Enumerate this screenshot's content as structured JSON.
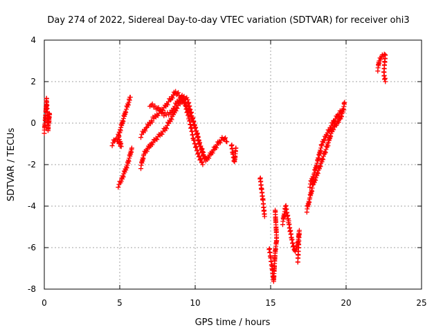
{
  "chart_data": {
    "type": "scatter",
    "title": "Day 274 of 2022, Sidereal Day-to-day VTEC variation (SDTVAR) for receiver ohi3",
    "xlabel": "GPS time / hours",
    "ylabel": "SDTVAR / TECUs",
    "xlim": [
      0,
      25
    ],
    "ylim": [
      -8,
      4
    ],
    "xticks": [
      "0",
      "5",
      "10",
      "15",
      "20",
      "25"
    ],
    "yticks": [
      "-8",
      "-6",
      "-4",
      "-2",
      "0",
      "2",
      "4"
    ],
    "grid": true,
    "marker": "+",
    "marker_color": "#ff0000",
    "series": [
      {
        "segments": [
          [
            [
              0.0,
              -0.4
            ],
            [
              0.05,
              0.0
            ],
            [
              0.1,
              0.5
            ],
            [
              0.15,
              1.2
            ],
            [
              0.2,
              0.3
            ],
            [
              0.25,
              -0.3
            ],
            [
              0.3,
              0.2
            ],
            [
              0.35,
              0.5
            ],
            [
              0.3,
              0.0
            ]
          ],
          [
            [
              4.5,
              -1.0
            ],
            [
              4.7,
              -0.8
            ],
            [
              4.9,
              -0.9
            ],
            [
              5.1,
              -1.1
            ],
            [
              4.9,
              -0.6
            ],
            [
              5.0,
              -0.4
            ],
            [
              5.2,
              0.1
            ],
            [
              5.4,
              0.6
            ],
            [
              5.6,
              1.0
            ],
            [
              5.7,
              1.25
            ]
          ],
          [
            [
              4.9,
              -3.0
            ],
            [
              5.1,
              -2.8
            ],
            [
              5.3,
              -2.4
            ],
            [
              5.5,
              -2.0
            ],
            [
              5.7,
              -1.5
            ],
            [
              5.8,
              -1.2
            ]
          ],
          [
            [
              6.4,
              -2.1
            ],
            [
              6.6,
              -1.5
            ],
            [
              6.9,
              -1.2
            ],
            [
              7.2,
              -0.9
            ],
            [
              7.6,
              -0.6
            ],
            [
              8.0,
              -0.3
            ],
            [
              8.4,
              0.2
            ],
            [
              8.8,
              0.8
            ],
            [
              9.2,
              1.1
            ],
            [
              9.6,
              0.6
            ],
            [
              10.0,
              -0.2
            ],
            [
              10.3,
              -1.0
            ],
            [
              10.6,
              -1.6
            ]
          ],
          [
            [
              6.4,
              -0.6
            ],
            [
              6.8,
              -0.2
            ],
            [
              7.2,
              0.2
            ],
            [
              7.6,
              0.5
            ],
            [
              8.0,
              0.8
            ],
            [
              8.4,
              1.2
            ],
            [
              8.7,
              1.5
            ],
            [
              9.0,
              1.3
            ],
            [
              9.3,
              1.0
            ],
            [
              9.6,
              0.2
            ],
            [
              9.9,
              -0.8
            ],
            [
              10.2,
              -1.5
            ],
            [
              10.5,
              -2.0
            ]
          ],
          [
            [
              7.0,
              0.9
            ],
            [
              7.5,
              0.7
            ],
            [
              8.0,
              0.4
            ],
            [
              8.4,
              0.5
            ],
            [
              8.8,
              1.0
            ],
            [
              9.2,
              1.3
            ],
            [
              9.5,
              1.1
            ],
            [
              9.8,
              0.3
            ],
            [
              10.1,
              -0.5
            ],
            [
              10.4,
              -1.3
            ],
            [
              10.7,
              -1.8
            ],
            [
              11.0,
              -1.5
            ],
            [
              11.3,
              -1.2
            ],
            [
              11.6,
              -0.9
            ],
            [
              11.9,
              -0.7
            ],
            [
              12.1,
              -0.9
            ]
          ],
          [
            [
              12.4,
              -1.0
            ],
            [
              12.5,
              -1.5
            ],
            [
              12.6,
              -1.9
            ],
            [
              12.7,
              -1.2
            ]
          ],
          [
            [
              14.3,
              -2.6
            ],
            [
              14.4,
              -3.2
            ],
            [
              14.5,
              -3.8
            ],
            [
              14.6,
              -4.5
            ]
          ],
          [
            [
              14.9,
              -6.0
            ],
            [
              15.0,
              -6.5
            ],
            [
              15.1,
              -7.0
            ],
            [
              15.2,
              -7.6
            ],
            [
              15.3,
              -6.2
            ],
            [
              15.4,
              -5.6
            ],
            [
              15.3,
              -4.2
            ]
          ],
          [
            [
              15.8,
              -4.8
            ],
            [
              16.0,
              -4.0
            ],
            [
              16.2,
              -4.8
            ],
            [
              16.4,
              -5.6
            ],
            [
              16.6,
              -6.2
            ],
            [
              16.8,
              -5.8
            ],
            [
              16.9,
              -5.2
            ],
            [
              16.8,
              -6.7
            ]
          ],
          [
            [
              17.4,
              -4.2
            ],
            [
              17.6,
              -3.6
            ],
            [
              17.8,
              -3.0
            ],
            [
              18.0,
              -2.6
            ],
            [
              18.2,
              -2.2
            ],
            [
              18.4,
              -1.8
            ],
            [
              18.6,
              -1.4
            ],
            [
              18.8,
              -1.0
            ],
            [
              19.0,
              -0.5
            ],
            [
              19.2,
              -0.2
            ],
            [
              19.4,
              0.0
            ],
            [
              19.6,
              0.2
            ],
            [
              19.8,
              0.6
            ],
            [
              19.9,
              1.0
            ]
          ],
          [
            [
              17.6,
              -3.0
            ],
            [
              17.9,
              -2.4
            ],
            [
              18.2,
              -1.6
            ],
            [
              18.4,
              -1.0
            ],
            [
              18.6,
              -0.7
            ],
            [
              18.9,
              -0.3
            ],
            [
              19.2,
              0.1
            ],
            [
              19.5,
              0.4
            ],
            [
              19.7,
              0.6
            ]
          ],
          [
            [
              22.1,
              2.6
            ],
            [
              22.2,
              3.0
            ],
            [
              22.4,
              3.2
            ],
            [
              22.6,
              3.3
            ],
            [
              22.5,
              2.4
            ],
            [
              22.6,
              2.0
            ]
          ]
        ]
      }
    ]
  }
}
